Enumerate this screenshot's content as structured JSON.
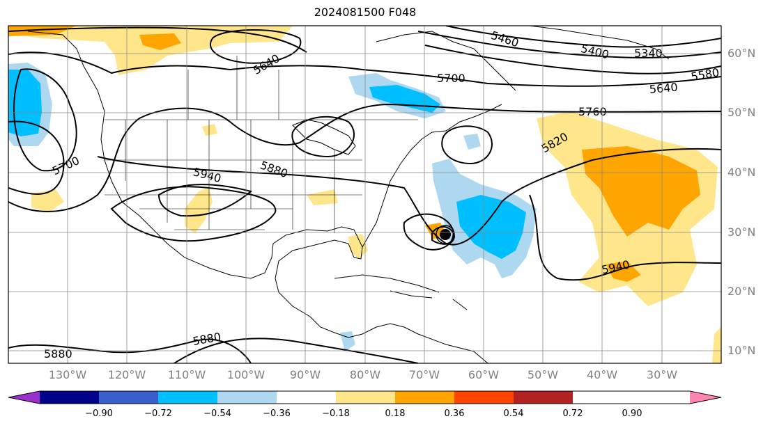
{
  "title": "2024081500 F048",
  "latitude_labels": [
    "60°N",
    "50°N",
    "40°N",
    "30°N",
    "20°N",
    "10°N"
  ],
  "longitude_labels": [
    "130°W",
    "120°W",
    "110°W",
    "100°W",
    "90°W",
    "80°W",
    "70°W",
    "60°W",
    "50°W",
    "40°W",
    "30°W"
  ],
  "colorbar": {
    "ticks": [
      "−0.90",
      "−0.72",
      "−0.54",
      "−0.36",
      "−0.18",
      "0.18",
      "0.36",
      "0.54",
      "0.72",
      "0.90"
    ],
    "colors": [
      "#9932cc",
      "#00008b",
      "#3a5fcd",
      "#00bfff",
      "#add8f0",
      "#ffffff",
      "#ffe68a",
      "#ffa500",
      "#ff4500",
      "#b22222",
      "#ff85b0"
    ]
  },
  "contour_labels": [
    "5640",
    "5460",
    "5400",
    "5340",
    "5580",
    "5700",
    "5640",
    "5760",
    "5820",
    "5700",
    "5940",
    "5880",
    "5940",
    "5880",
    "5880"
  ],
  "storm_marker": "tropical-cyclone-center"
}
